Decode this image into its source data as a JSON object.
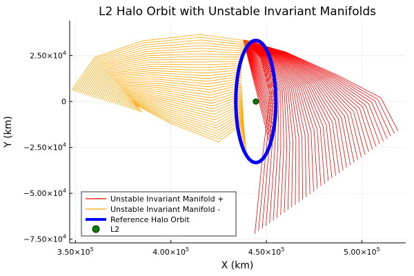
{
  "chart_data": {
    "type": "line",
    "title": "L2 Halo Orbit with Unstable Invariant Manifolds",
    "xlabel": "X (km)",
    "ylabel": "Y (km)",
    "xlim": [
      347000,
      523000
    ],
    "ylim": [
      -77000,
      44000
    ],
    "grid": true,
    "legend_position": "bottom-left",
    "xticks": [
      {
        "value": 350000,
        "mant": "3.50×10",
        "exp": "5"
      },
      {
        "value": 400000,
        "mant": "4.00×10",
        "exp": "5"
      },
      {
        "value": 450000,
        "mant": "4.50×10",
        "exp": "5"
      },
      {
        "value": 500000,
        "mant": "5.00×10",
        "exp": "5"
      }
    ],
    "yticks": [
      {
        "value": 25000,
        "mant": "2.50×10",
        "exp": "4"
      },
      {
        "value": 0,
        "mant": "0",
        "exp": ""
      },
      {
        "value": -25000,
        "mant": "−2.50×10",
        "exp": "4"
      },
      {
        "value": -50000,
        "mant": "−5.00×10",
        "exp": "4"
      },
      {
        "value": -75000,
        "mant": "−7.50×10",
        "exp": "4"
      }
    ],
    "series": [
      {
        "name": "Unstable Invariant Manifold +",
        "color": "#ff0000",
        "kind": "manifold",
        "n_trajectories": 40
      },
      {
        "name": "Unstable Invariant Manifold -",
        "color": "#ffa500",
        "kind": "manifold",
        "n_trajectories": 40
      },
      {
        "name": "Reference Halo Orbit",
        "color": "#0000ff",
        "kind": "closed-curve",
        "center": [
          444500,
          0
        ],
        "x_range": [
          434500,
          455500
        ],
        "y_range": [
          -33000,
          33500
        ]
      },
      {
        "name": "L2",
        "color": "#008000",
        "kind": "point",
        "x": 444500,
        "y": 0
      }
    ]
  }
}
